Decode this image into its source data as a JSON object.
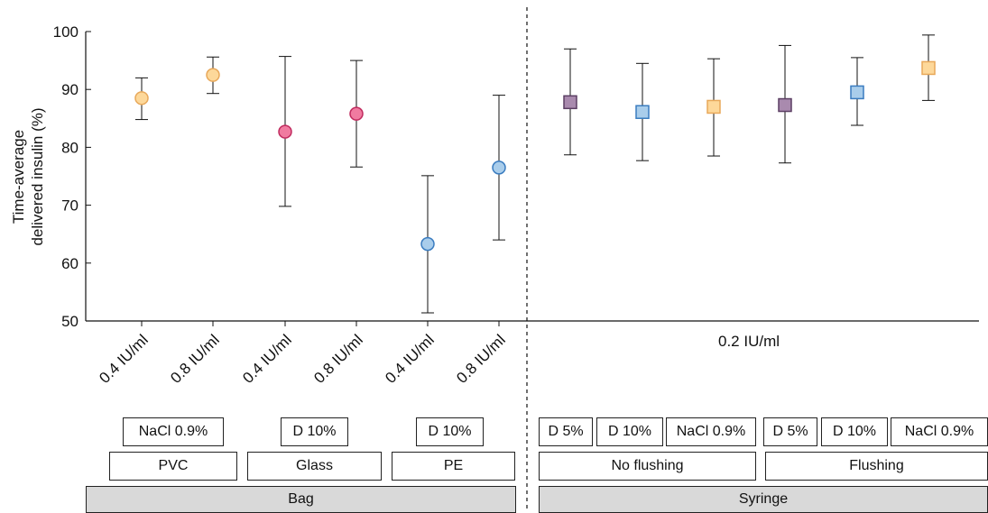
{
  "chart_data": {
    "type": "scatter",
    "ylabel_line1": "Time-average",
    "ylabel_line2": "delivered insulin (%)",
    "ylim": [
      50,
      100
    ],
    "yticks": [
      "50",
      "60",
      "70",
      "80",
      "90",
      "100"
    ],
    "grid": false,
    "x_tick_labels": [
      "0.4 IU/ml",
      "0.8 IU/ml",
      "0.4 IU/ml",
      "0.8 IU/ml",
      "0.4 IU/ml",
      "0.8 IU/ml"
    ],
    "right_concentration_label": "0.2 IU/ml",
    "points": [
      {
        "group": "Bag",
        "material": "PVC",
        "solution": "NaCl 0.9%",
        "concentration": "0.4 IU/ml",
        "mean": 88.5,
        "low": 84.8,
        "high": 92.0,
        "marker": "circle",
        "color": "#FDD89A",
        "edge": "#E8A85A"
      },
      {
        "group": "Bag",
        "material": "PVC",
        "solution": "NaCl 0.9%",
        "concentration": "0.8 IU/ml",
        "mean": 92.5,
        "low": 89.3,
        "high": 95.6,
        "marker": "circle",
        "color": "#FDD89A",
        "edge": "#E8A85A"
      },
      {
        "group": "Bag",
        "material": "Glass",
        "solution": "D 10%",
        "concentration": "0.4 IU/ml",
        "mean": 82.7,
        "low": 69.8,
        "high": 95.7,
        "marker": "circle",
        "color": "#F07BA0",
        "edge": "#C02A5E"
      },
      {
        "group": "Bag",
        "material": "Glass",
        "solution": "D 10%",
        "concentration": "0.8 IU/ml",
        "mean": 85.8,
        "low": 76.6,
        "high": 95.0,
        "marker": "circle",
        "color": "#F07BA0",
        "edge": "#C02A5E"
      },
      {
        "group": "Bag",
        "material": "PE",
        "solution": "D 10%",
        "concentration": "0.4 IU/ml",
        "mean": 63.3,
        "low": 51.4,
        "high": 75.1,
        "marker": "circle",
        "color": "#A9CDEB",
        "edge": "#3A7CC0"
      },
      {
        "group": "Bag",
        "material": "PE",
        "solution": "D 10%",
        "concentration": "0.8 IU/ml",
        "mean": 76.5,
        "low": 64.0,
        "high": 89.0,
        "marker": "circle",
        "color": "#A9CDEB",
        "edge": "#3A7CC0"
      },
      {
        "group": "Syringe",
        "material": "No flushing",
        "solution": "D 5%",
        "concentration": "0.2 IU/ml",
        "mean": 87.8,
        "low": 78.7,
        "high": 97.0,
        "marker": "square",
        "color": "#A98AAE",
        "edge": "#5B3E63"
      },
      {
        "group": "Syringe",
        "material": "No flushing",
        "solution": "D 10%",
        "concentration": "0.2 IU/ml",
        "mean": 86.1,
        "low": 77.7,
        "high": 94.5,
        "marker": "square",
        "color": "#A9CDEB",
        "edge": "#3A7CC0"
      },
      {
        "group": "Syringe",
        "material": "No flushing",
        "solution": "NaCl 0.9%",
        "concentration": "0.2 IU/ml",
        "mean": 87.0,
        "low": 78.5,
        "high": 95.3,
        "marker": "square",
        "color": "#FDD89A",
        "edge": "#E8A85A"
      },
      {
        "group": "Syringe",
        "material": "Flushing",
        "solution": "D 5%",
        "concentration": "0.2 IU/ml",
        "mean": 87.3,
        "low": 77.3,
        "high": 97.6,
        "marker": "square",
        "color": "#A98AAE",
        "edge": "#5B3E63"
      },
      {
        "group": "Syringe",
        "material": "Flushing",
        "solution": "D 10%",
        "concentration": "0.2 IU/ml",
        "mean": 89.5,
        "low": 83.8,
        "high": 95.5,
        "marker": "square",
        "color": "#A9CDEB",
        "edge": "#3A7CC0"
      },
      {
        "group": "Syringe",
        "material": "Flushing",
        "solution": "NaCl 0.9%",
        "concentration": "0.2 IU/ml",
        "mean": 93.7,
        "low": 88.1,
        "high": 99.4,
        "marker": "square",
        "color": "#FDD89A",
        "edge": "#E8A85A"
      }
    ],
    "table": {
      "solutions_left": [
        "NaCl 0.9%",
        "D 10%",
        "D 10%"
      ],
      "materials_left": [
        "PVC",
        "Glass",
        "PE"
      ],
      "group_left": "Bag",
      "solutions_right": [
        "D 5%",
        "D 10%",
        "NaCl 0.9%",
        "D 5%",
        "D 10%",
        "NaCl 0.9%"
      ],
      "materials_right": [
        "No flushing",
        "Flushing"
      ],
      "group_right": "Syringe"
    }
  }
}
